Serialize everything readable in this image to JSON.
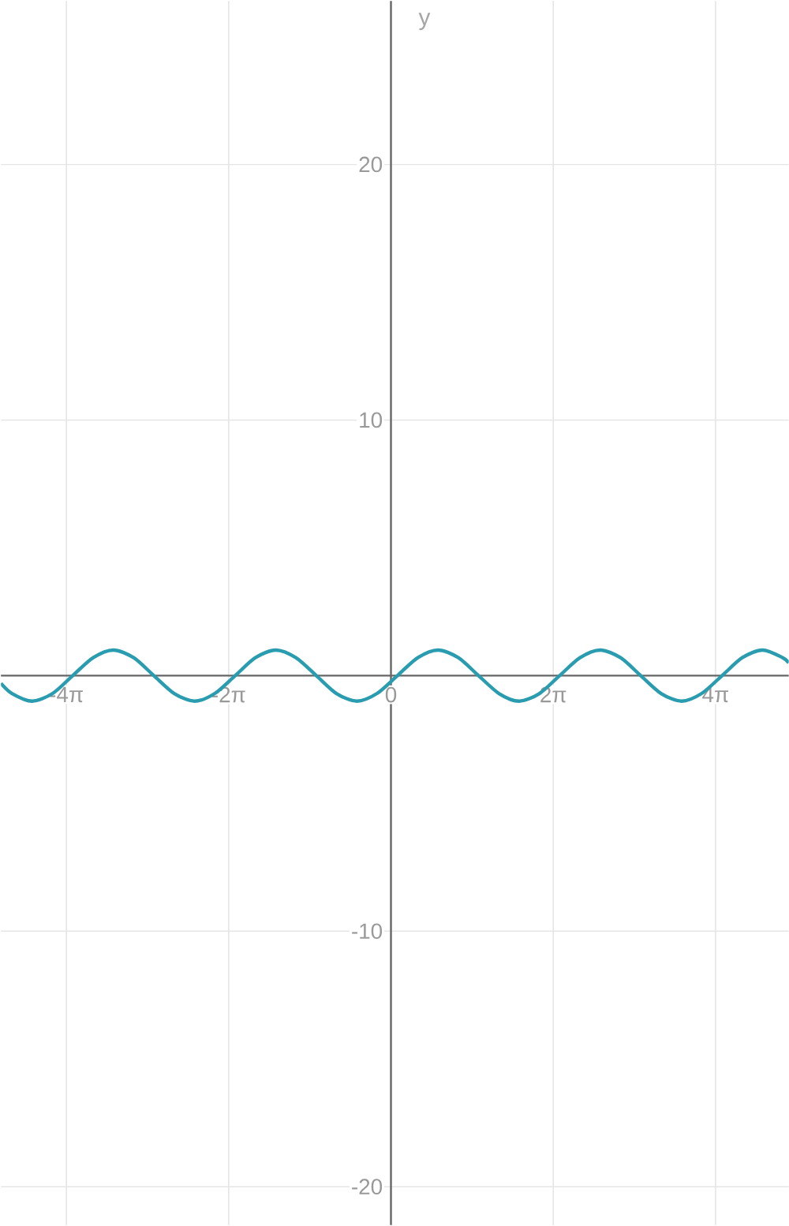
{
  "chart_data": {
    "type": "line",
    "ylabel": "y",
    "x": [
      -15.1,
      -14.67,
      -13.89,
      -13.1,
      -12.32,
      -11.53,
      -10.75,
      -9.96,
      -9.18,
      -8.39,
      -7.6,
      -6.82,
      -6.03,
      -5.25,
      -4.46,
      -3.68,
      -2.89,
      -2.11,
      -1.32,
      -0.54,
      0.25,
      1.04,
      1.82,
      2.61,
      3.39,
      4.18,
      4.96,
      5.75,
      6.53,
      7.32,
      8.1,
      8.89,
      9.67,
      10.46,
      11.25,
      12.03,
      12.82,
      13.6,
      14.39,
      15.17,
      15.4
    ],
    "values": [
      -0.3,
      -0.7,
      -1,
      -0.7,
      0,
      0.7,
      1,
      0.7,
      0,
      -0.7,
      -1,
      -0.7,
      0,
      0.7,
      1,
      0.7,
      0,
      -0.7,
      -1,
      -0.7,
      0,
      0.7,
      1,
      0.7,
      0,
      -0.7,
      -1,
      -0.7,
      0,
      0.7,
      1,
      0.7,
      0,
      -0.7,
      -1,
      -0.7,
      0,
      0.7,
      1,
      0.7,
      0.5
    ],
    "color": "#2a9cb0",
    "xlim": [
      -15.1,
      15.4
    ],
    "ylim": [
      -21.5,
      26.4
    ],
    "xticks": [
      {
        "value": -12.566,
        "label": "-4π"
      },
      {
        "value": -6.283,
        "label": "-2π"
      },
      {
        "value": 0,
        "label": "0"
      },
      {
        "value": 6.283,
        "label": "2π"
      },
      {
        "value": 12.566,
        "label": "4π"
      }
    ],
    "yticks": [
      -20,
      -10,
      10,
      20
    ],
    "grid": true
  }
}
